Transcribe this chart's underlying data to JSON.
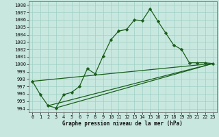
{
  "title": "Graphe pression niveau de la mer (hPa)",
  "background_color": "#c8e8df",
  "grid_color": "#9ecfc4",
  "line_color": "#1a5e1a",
  "xlim": [
    -0.5,
    23.5
  ],
  "ylim": [
    993.5,
    1008.5
  ],
  "yticks": [
    994,
    995,
    996,
    997,
    998,
    999,
    1000,
    1001,
    1002,
    1003,
    1004,
    1005,
    1006,
    1007,
    1008
  ],
  "xticks": [
    0,
    1,
    2,
    3,
    4,
    5,
    6,
    7,
    8,
    9,
    10,
    11,
    12,
    13,
    14,
    15,
    16,
    17,
    18,
    19,
    20,
    21,
    22,
    23
  ],
  "line1_x": [
    0,
    1,
    2,
    3,
    4,
    5,
    6,
    7,
    8,
    9,
    10,
    11,
    12,
    13,
    14,
    15,
    16,
    17,
    18,
    19,
    20,
    21,
    22,
    23
  ],
  "line1_y": [
    997.7,
    995.9,
    994.4,
    994.1,
    995.9,
    996.2,
    997.0,
    999.4,
    998.7,
    1001.1,
    1003.3,
    1004.5,
    1004.7,
    1006.0,
    1005.9,
    1007.5,
    1005.8,
    1004.2,
    1002.6,
    1002.0,
    1000.2,
    1000.2,
    1000.2,
    1000.1
  ],
  "line2_x": [
    0,
    23
  ],
  "line2_y": [
    997.7,
    1000.1
  ],
  "line3_x": [
    2,
    23
  ],
  "line3_y": [
    994.4,
    1000.1
  ],
  "line4_x": [
    3,
    23
  ],
  "line4_y": [
    994.1,
    1000.1
  ],
  "marker": "D",
  "markersize": 2.2,
  "linewidth": 0.9,
  "tick_fontsize": 5.0,
  "label_fontsize": 5.5
}
